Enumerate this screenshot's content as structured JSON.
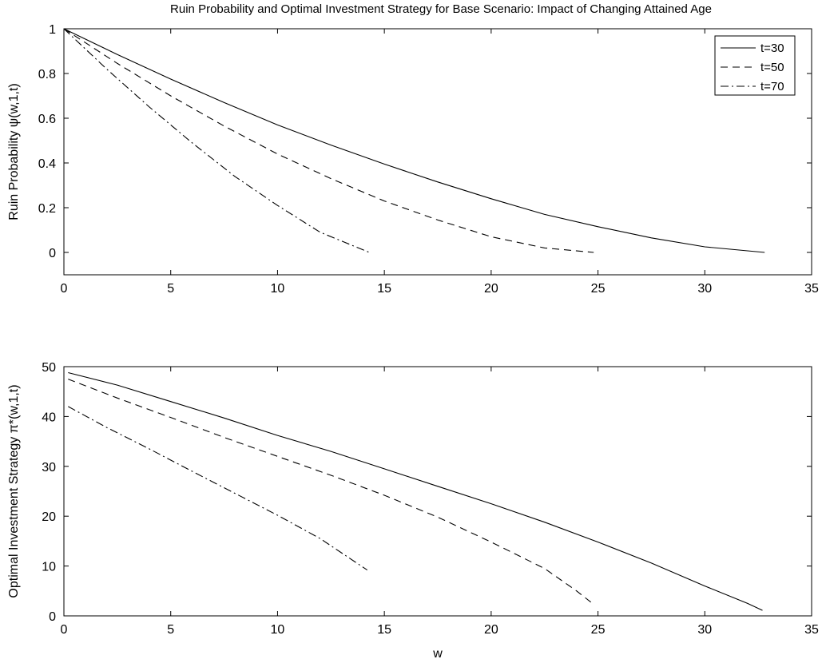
{
  "figure": {
    "title": "Ruin Probability and Optimal Investment Strategy for Base Scenario: Impact of Changing Attained Age"
  },
  "legend": {
    "entries": [
      "t=30",
      "t=50",
      "t=70"
    ],
    "placement": "top-right"
  },
  "chart_data": [
    {
      "type": "line",
      "title": "Ruin Probability and Optimal Investment Strategy for Base Scenario: Impact of Changing Attained Age",
      "xlabel": "",
      "ylabel": "Ruin Probability ψ(w,1,t)",
      "xlim": [
        0,
        35
      ],
      "ylim": [
        -0.1,
        1
      ],
      "xticks": [
        0,
        5,
        10,
        15,
        20,
        25,
        30,
        35
      ],
      "xtick_labels": [
        "0",
        "5",
        "10",
        "15",
        "20",
        "25",
        "30",
        "35"
      ],
      "yticks": [
        0,
        0.2,
        0.4,
        0.6,
        0.8,
        1
      ],
      "ytick_labels": [
        "0",
        "0.2",
        "0.4",
        "0.6",
        "0.8",
        "1"
      ],
      "grid": false,
      "legend": "top-right",
      "series": [
        {
          "name": "t=30",
          "style": "solid",
          "x": [
            0,
            2.5,
            5,
            7.5,
            10,
            12.5,
            15,
            17.5,
            20,
            22.5,
            25,
            27.5,
            30,
            32.8
          ],
          "y": [
            1.0,
            0.885,
            0.775,
            0.67,
            0.57,
            0.48,
            0.395,
            0.315,
            0.24,
            0.17,
            0.115,
            0.065,
            0.025,
            0.0
          ]
        },
        {
          "name": "t=50",
          "style": "dashed",
          "x": [
            0,
            2.5,
            5,
            7.5,
            10,
            12.5,
            15,
            17.5,
            20,
            22.5,
            24.8
          ],
          "y": [
            1.0,
            0.845,
            0.7,
            0.565,
            0.44,
            0.33,
            0.23,
            0.145,
            0.07,
            0.02,
            0.0
          ]
        },
        {
          "name": "t=70",
          "style": "dashdot",
          "x": [
            0,
            2,
            4,
            6,
            8,
            10,
            12,
            14.3
          ],
          "y": [
            1.0,
            0.82,
            0.65,
            0.49,
            0.34,
            0.21,
            0.09,
            0.0
          ]
        }
      ]
    },
    {
      "type": "line",
      "title": "",
      "xlabel": "w",
      "ylabel": "Optimal Investment Strategy π*(w,1,t)",
      "xlim": [
        0,
        35
      ],
      "ylim": [
        0,
        50
      ],
      "xticks": [
        0,
        5,
        10,
        15,
        20,
        25,
        30,
        35
      ],
      "xtick_labels": [
        "0",
        "5",
        "10",
        "15",
        "20",
        "25",
        "30",
        "35"
      ],
      "yticks": [
        0,
        10,
        20,
        30,
        40,
        50
      ],
      "ytick_labels": [
        "0",
        "10",
        "20",
        "30",
        "40",
        "50"
      ],
      "grid": false,
      "series": [
        {
          "name": "t=30",
          "style": "solid",
          "x": [
            0.2,
            2.5,
            5,
            7.5,
            10,
            12.5,
            15,
            17.5,
            20,
            22.5,
            25,
            27.5,
            30,
            32,
            32.7
          ],
          "y": [
            48.8,
            46.3,
            43.0,
            39.7,
            36.2,
            33.0,
            29.5,
            26.0,
            22.5,
            18.8,
            14.8,
            10.6,
            6.0,
            2.5,
            1.1
          ]
        },
        {
          "name": "t=50",
          "style": "dashed",
          "x": [
            0.2,
            2.5,
            5,
            7.5,
            10,
            12.5,
            15,
            17.5,
            20,
            22.5,
            24.0,
            24.8
          ],
          "y": [
            47.5,
            43.7,
            39.8,
            35.8,
            32.0,
            28.2,
            24.2,
            19.8,
            14.8,
            9.5,
            5.0,
            2.3
          ]
        },
        {
          "name": "t=70",
          "style": "dashdot",
          "x": [
            0.2,
            2,
            4,
            6,
            8,
            10,
            12,
            14.2
          ],
          "y": [
            42.0,
            37.8,
            33.5,
            29.0,
            24.6,
            20.2,
            15.5,
            9.2
          ]
        }
      ]
    }
  ]
}
